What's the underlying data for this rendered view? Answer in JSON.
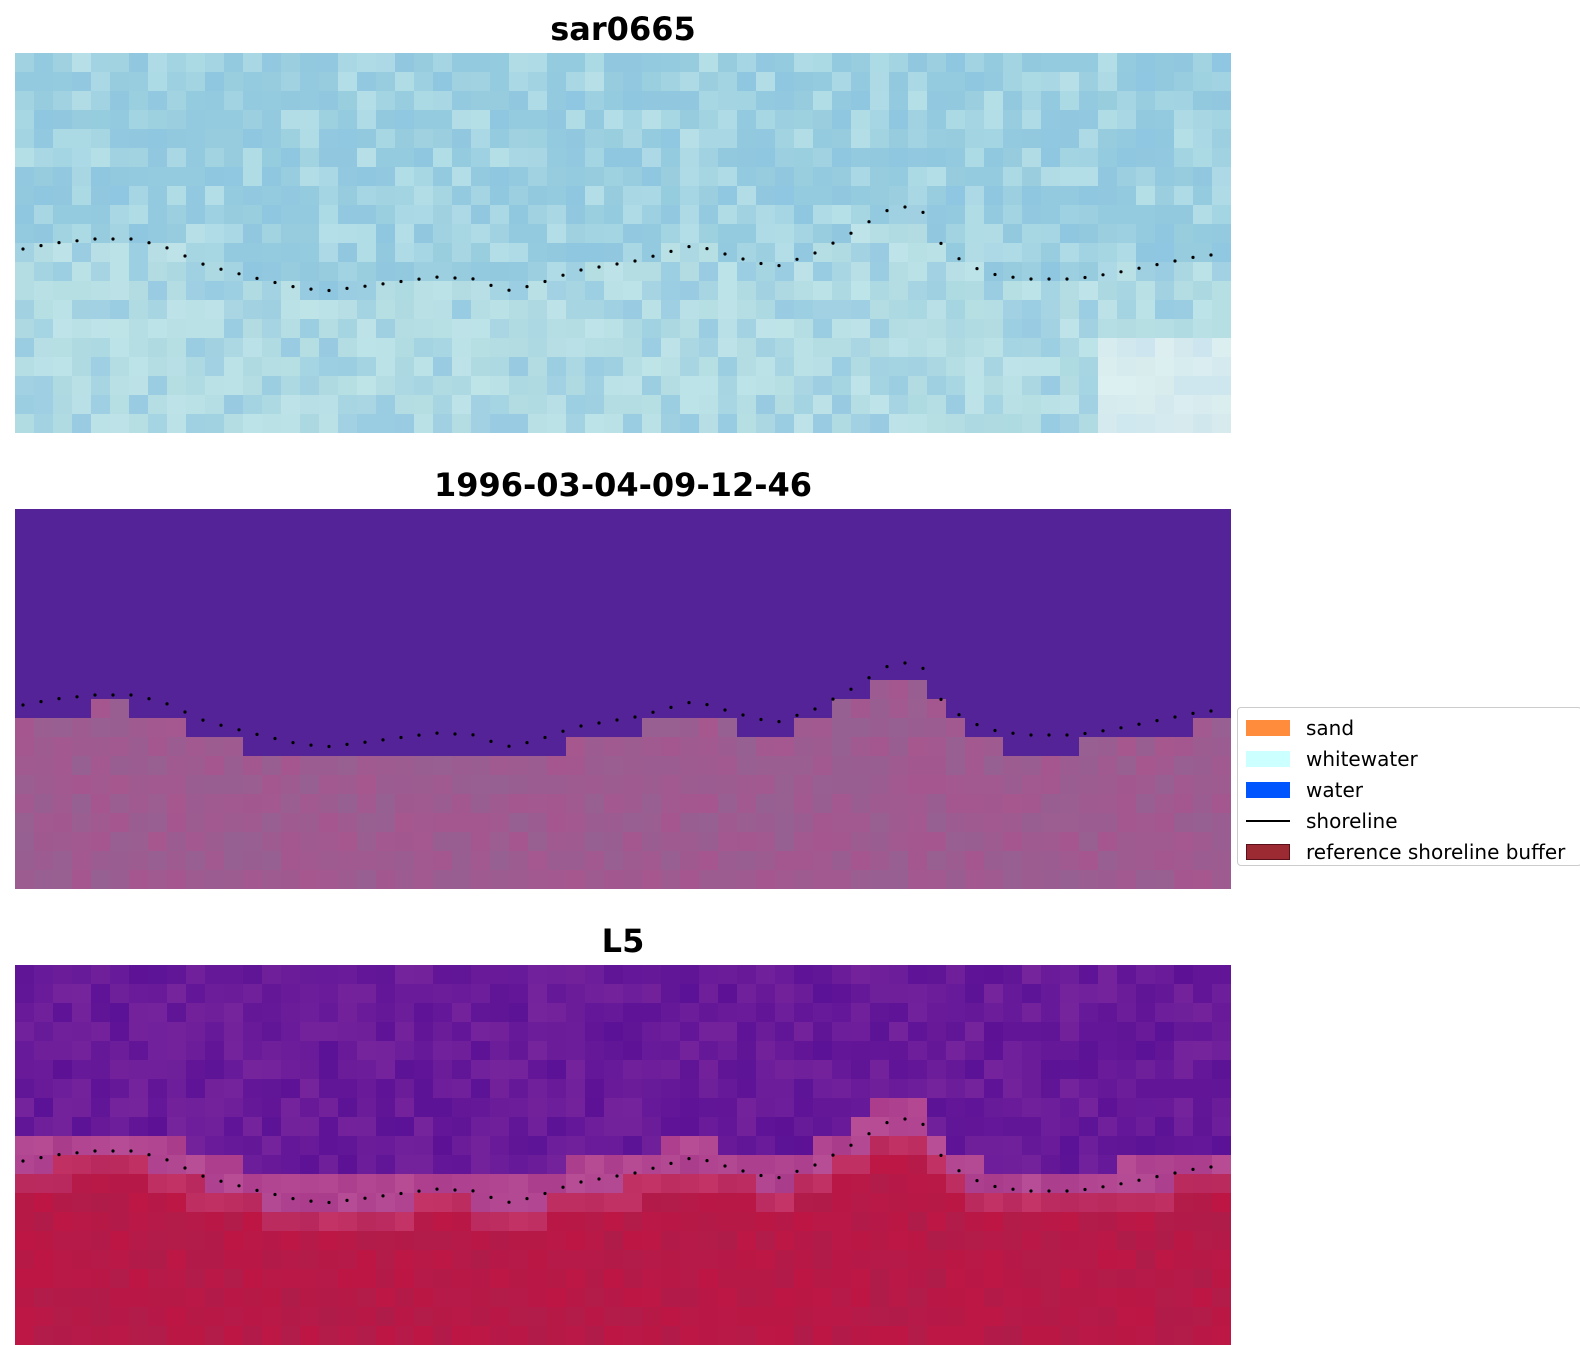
{
  "panels": [
    {
      "title": "sar0665",
      "palette": "sar"
    },
    {
      "title": "1996-03-04-09-12-46",
      "palette": "classified"
    },
    {
      "title": "L5",
      "palette": "ndwi"
    }
  ],
  "legend": {
    "items": [
      {
        "label": "sand",
        "color": "#ff8c3c",
        "kind": "patch"
      },
      {
        "label": "whitewater",
        "color": "#ccffff",
        "kind": "patch"
      },
      {
        "label": "water",
        "color": "#0055ff",
        "kind": "patch"
      },
      {
        "label": "shoreline",
        "color": "#000000",
        "kind": "line"
      },
      {
        "label": "reference shoreline buffer",
        "color": "#9b2a33",
        "kind": "patch"
      }
    ]
  }
}
